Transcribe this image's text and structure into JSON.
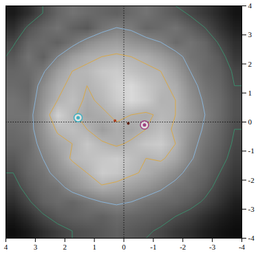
{
  "chart_data": {
    "type": "heatmap",
    "xlim": [
      4,
      -4
    ],
    "ylim": [
      -4,
      4
    ],
    "xticks": [
      4,
      3,
      2,
      1,
      0,
      -1,
      -2,
      -3,
      -4
    ],
    "yticks": [
      -4,
      -3,
      -2,
      -1,
      0,
      1,
      2,
      3,
      4
    ],
    "zlim": [
      0,
      1
    ],
    "grid": false,
    "cells": [
      [
        0.1,
        0.18,
        0.3,
        0.4,
        0.45,
        0.42,
        0.4,
        0.38,
        0.42,
        0.45,
        0.4,
        0.35,
        0.28,
        0.22,
        0.15,
        0.08
      ],
      [
        0.18,
        0.32,
        0.4,
        0.45,
        0.38,
        0.35,
        0.45,
        0.5,
        0.48,
        0.4,
        0.42,
        0.45,
        0.38,
        0.3,
        0.2,
        0.12
      ],
      [
        0.28,
        0.4,
        0.42,
        0.38,
        0.45,
        0.55,
        0.6,
        0.62,
        0.58,
        0.55,
        0.5,
        0.42,
        0.45,
        0.4,
        0.28,
        0.18
      ],
      [
        0.35,
        0.45,
        0.38,
        0.5,
        0.62,
        0.68,
        0.7,
        0.72,
        0.7,
        0.68,
        0.62,
        0.55,
        0.45,
        0.42,
        0.35,
        0.22
      ],
      [
        0.4,
        0.42,
        0.48,
        0.62,
        0.7,
        0.72,
        0.78,
        0.8,
        0.76,
        0.72,
        0.7,
        0.62,
        0.5,
        0.42,
        0.38,
        0.28
      ],
      [
        0.42,
        0.4,
        0.55,
        0.68,
        0.72,
        0.7,
        0.75,
        0.82,
        0.85,
        0.78,
        0.72,
        0.68,
        0.55,
        0.45,
        0.4,
        0.3
      ],
      [
        0.45,
        0.42,
        0.58,
        0.7,
        0.75,
        0.68,
        0.72,
        0.8,
        0.85,
        0.8,
        0.7,
        0.7,
        0.58,
        0.48,
        0.42,
        0.32
      ],
      [
        0.45,
        0.45,
        0.6,
        0.82,
        0.72,
        0.65,
        0.68,
        0.72,
        0.7,
        0.68,
        0.72,
        0.7,
        0.6,
        0.5,
        0.42,
        0.32
      ],
      [
        0.42,
        0.45,
        0.58,
        0.72,
        0.75,
        0.7,
        0.62,
        0.68,
        0.65,
        0.7,
        0.75,
        0.68,
        0.58,
        0.48,
        0.4,
        0.3
      ],
      [
        0.4,
        0.42,
        0.55,
        0.65,
        0.7,
        0.78,
        0.72,
        0.68,
        0.72,
        0.78,
        0.8,
        0.7,
        0.55,
        0.45,
        0.38,
        0.28
      ],
      [
        0.35,
        0.42,
        0.5,
        0.6,
        0.72,
        0.75,
        0.78,
        0.8,
        0.75,
        0.7,
        0.72,
        0.65,
        0.52,
        0.42,
        0.35,
        0.25
      ],
      [
        0.3,
        0.4,
        0.45,
        0.55,
        0.62,
        0.7,
        0.8,
        0.78,
        0.72,
        0.68,
        0.62,
        0.55,
        0.45,
        0.4,
        0.3,
        0.22
      ],
      [
        0.25,
        0.35,
        0.42,
        0.45,
        0.55,
        0.62,
        0.68,
        0.65,
        0.62,
        0.58,
        0.52,
        0.45,
        0.42,
        0.35,
        0.25,
        0.18
      ],
      [
        0.18,
        0.28,
        0.38,
        0.42,
        0.4,
        0.45,
        0.5,
        0.52,
        0.5,
        0.45,
        0.42,
        0.4,
        0.35,
        0.28,
        0.2,
        0.12
      ],
      [
        0.1,
        0.18,
        0.28,
        0.35,
        0.38,
        0.4,
        0.38,
        0.42,
        0.4,
        0.38,
        0.35,
        0.3,
        0.25,
        0.18,
        0.12,
        0.08
      ],
      [
        0.05,
        0.1,
        0.18,
        0.25,
        0.3,
        0.32,
        0.35,
        0.38,
        0.35,
        0.32,
        0.28,
        0.22,
        0.18,
        0.12,
        0.08,
        0.05
      ]
    ],
    "contours": {
      "levels": [
        0.3,
        0.5,
        0.7
      ],
      "colors": [
        "#3c8c6c",
        "#8ab4d8",
        "#d8a848"
      ]
    },
    "points": [
      {
        "x": 0.3,
        "y": 0.05,
        "color": "#b04020",
        "marker": "dot"
      },
      {
        "x": -0.15,
        "y": -0.05,
        "color": "#602010",
        "marker": "dot"
      },
      {
        "x": -0.7,
        "y": -0.1,
        "color": "#a04080",
        "marker": "ring"
      },
      {
        "x": 1.55,
        "y": 0.15,
        "color": "#40b0c0",
        "marker": "ring"
      }
    ],
    "reference_lines": {
      "x": 0,
      "y": 0,
      "line_style": "dotted"
    }
  }
}
